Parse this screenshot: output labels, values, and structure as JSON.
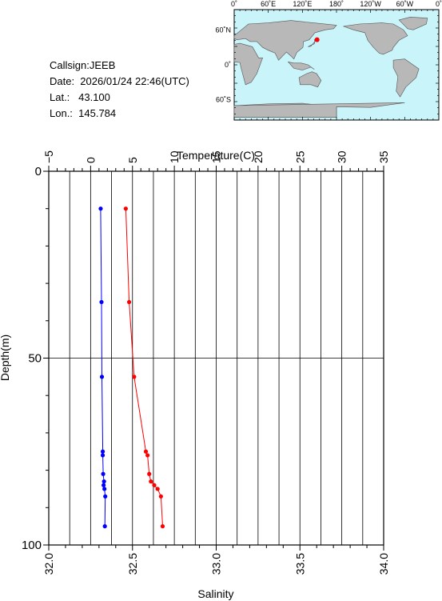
{
  "info": {
    "callsign": "Callsign:JEEB",
    "date": "Date:  2026/01/24 22:46(UTC)",
    "lat": "Lat.:   43.100",
    "lon": "Lon.:  145.784"
  },
  "map": {
    "top_labels": [
      "0˚",
      "60˚E",
      "120˚E",
      "180˚",
      "120˚W",
      "60˚W",
      "0˚"
    ],
    "left_labels": [
      "60˚N",
      "0˚",
      "60˚S"
    ],
    "ocean_color": "#c8f4fa",
    "land_color": "#b8b8b8",
    "marker_color": "#ff0000",
    "marker": {
      "lon": 145.784,
      "lat": 43.1
    }
  },
  "chart_data": {
    "type": "line",
    "ylabel": "Depth(m)",
    "ylim": [
      100,
      0
    ],
    "y_ticks": [
      "0",
      "50",
      "100"
    ],
    "grid": true,
    "temperature_axis": {
      "label": "Temperature(C)",
      "range": [
        -5,
        35
      ],
      "ticks": [
        "−5",
        "0",
        "5",
        "10",
        "15",
        "20",
        "25",
        "30",
        "35"
      ]
    },
    "salinity_axis": {
      "label": "Salinity",
      "range": [
        32.0,
        34.0
      ],
      "ticks": [
        "32.0",
        "32.5",
        "33.0",
        "33.5",
        "34.0"
      ]
    },
    "series": [
      {
        "color": "#0000ff",
        "axis": "temperature",
        "points": [
          {
            "depth": 10,
            "value": 1.2
          },
          {
            "depth": 35,
            "value": 1.3
          },
          {
            "depth": 55,
            "value": 1.35
          },
          {
            "depth": 75,
            "value": 1.45
          },
          {
            "depth": 76,
            "value": 1.45
          },
          {
            "depth": 81,
            "value": 1.5
          },
          {
            "depth": 83,
            "value": 1.6
          },
          {
            "depth": 84,
            "value": 1.55
          },
          {
            "depth": 85,
            "value": 1.65
          },
          {
            "depth": 87,
            "value": 1.75
          },
          {
            "depth": 95,
            "value": 1.7
          }
        ]
      },
      {
        "color": "#ff0000",
        "axis": "salinity",
        "points": [
          {
            "depth": 10,
            "value": 32.46
          },
          {
            "depth": 35,
            "value": 32.48
          },
          {
            "depth": 55,
            "value": 32.51
          },
          {
            "depth": 75,
            "value": 32.58
          },
          {
            "depth": 76,
            "value": 32.59
          },
          {
            "depth": 81,
            "value": 32.6
          },
          {
            "depth": 83,
            "value": 32.61
          },
          {
            "depth": 84,
            "value": 32.63
          },
          {
            "depth": 85,
            "value": 32.65
          },
          {
            "depth": 87,
            "value": 32.67
          },
          {
            "depth": 95,
            "value": 32.68
          }
        ]
      }
    ]
  }
}
